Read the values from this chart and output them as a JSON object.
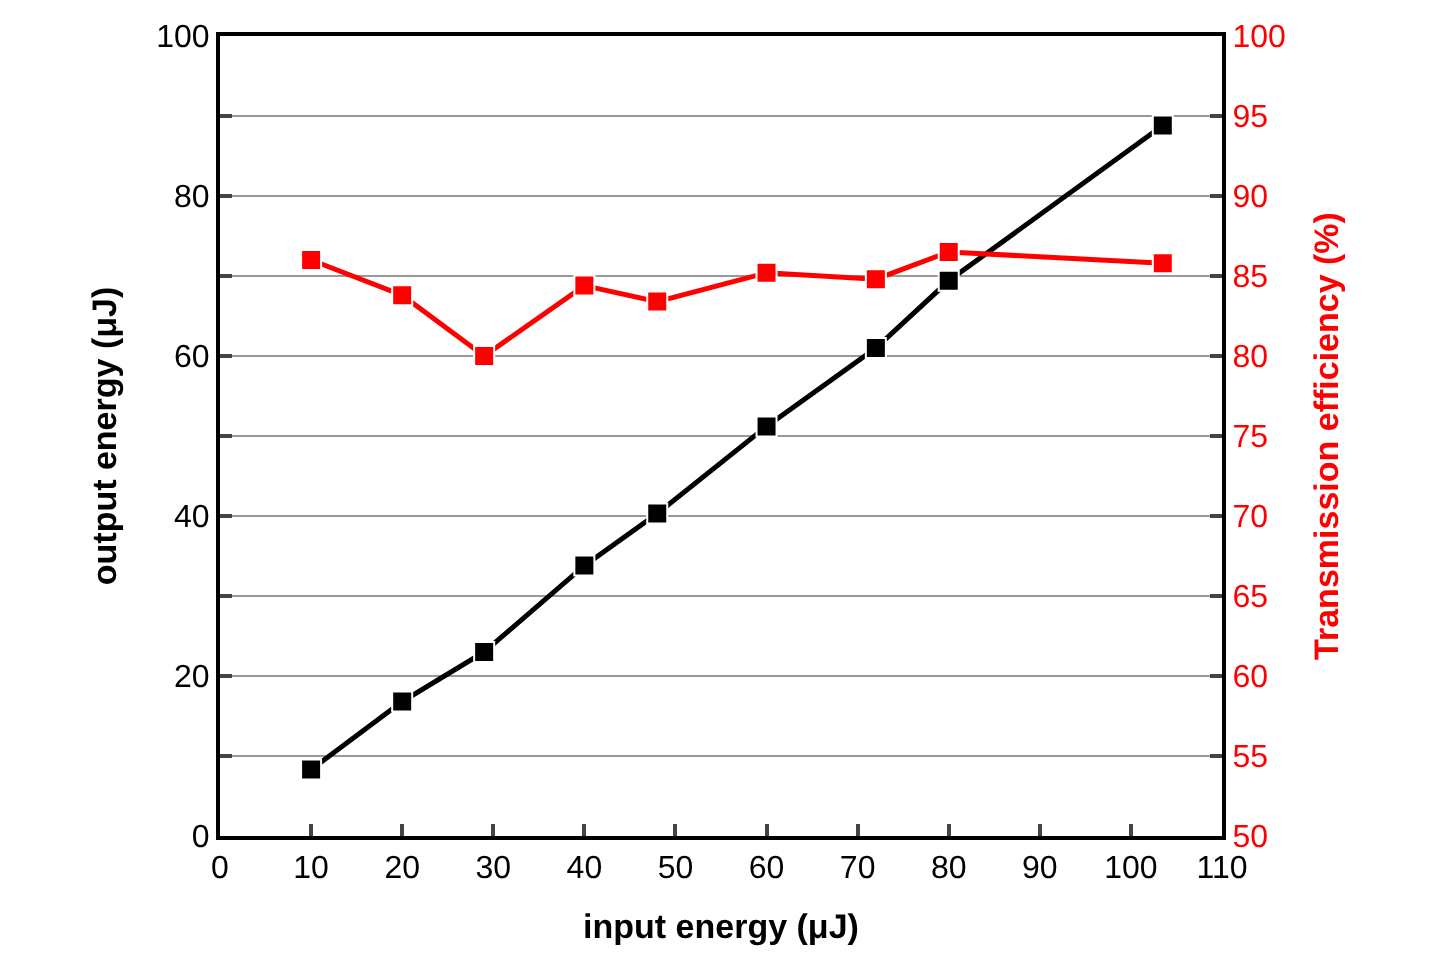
{
  "chart_data": {
    "type": "line",
    "xlabel": "input energy (μJ)",
    "ylabel": "output energy (μJ)",
    "y2label": "Transmission efficiency (%)",
    "x": [
      10,
      20,
      29,
      40,
      48,
      60,
      72,
      80,
      103.5
    ],
    "series": [
      {
        "color": "#000000",
        "values": [
          8.3,
          16.8,
          23,
          33.8,
          40.3,
          51.2,
          61,
          69.4,
          88.8
        ]
      },
      {
        "color": "#ff0000",
        "axis": "y2",
        "values": [
          86,
          83.8,
          80,
          84.4,
          83.4,
          85.2,
          84.8,
          86.5,
          85.8
        ]
      }
    ],
    "xlim": [
      0,
      110
    ],
    "xticks": [
      0,
      10,
      20,
      30,
      40,
      50,
      60,
      70,
      80,
      90,
      100,
      110
    ],
    "ylim": [
      0,
      100
    ],
    "yticks": [
      0,
      {
        "value": 10,
        "label": null
      },
      20,
      {
        "value": 30,
        "label": null
      },
      40,
      {
        "value": 50,
        "label": null
      },
      60,
      {
        "value": 70,
        "label": null
      },
      80,
      {
        "value": 90,
        "label": null
      },
      100
    ],
    "y2lim": [
      50,
      100
    ],
    "y2ticks": [
      50,
      55,
      60,
      65,
      70,
      75,
      80,
      85,
      90,
      95,
      100
    ],
    "grid": "y",
    "marker": "square",
    "line_style": "solid"
  }
}
